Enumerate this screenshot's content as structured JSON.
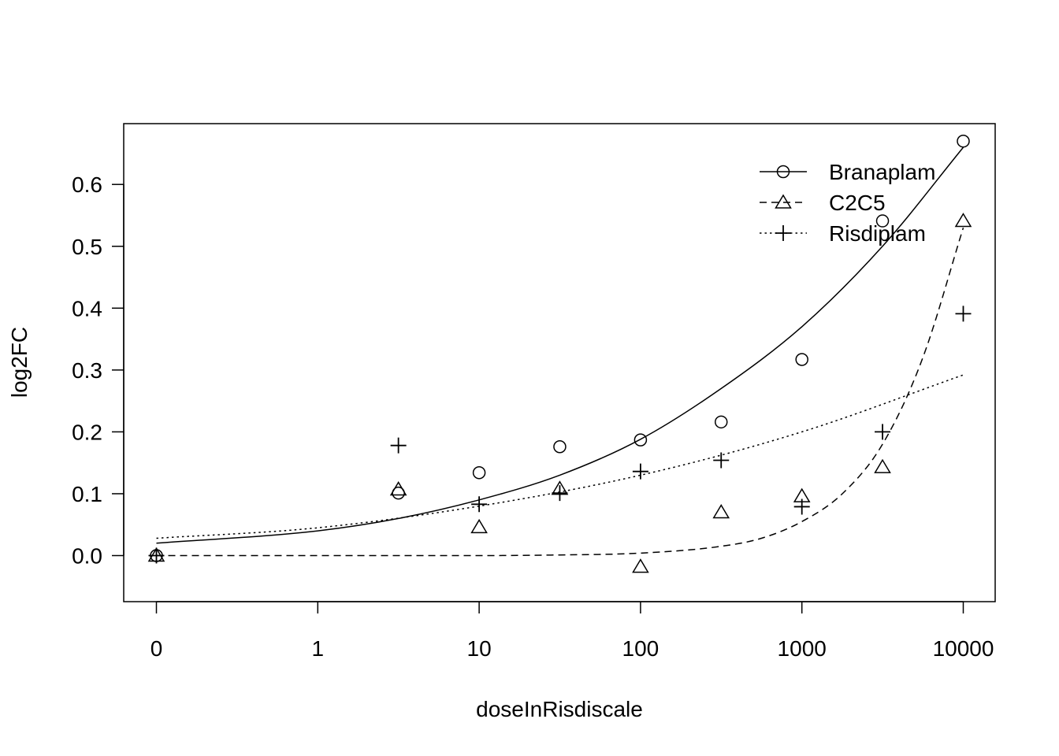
{
  "chart_data": {
    "type": "scatter",
    "title": "",
    "xlabel": "doseInRisdiscale",
    "ylabel": "log2FC",
    "x_scale": "log10 (0 placed one decade below 1)",
    "x_ticks": [
      "0",
      "1",
      "10",
      "100",
      "1000",
      "10000"
    ],
    "y_ticks": [
      "0.0",
      "0.1",
      "0.2",
      "0.3",
      "0.4",
      "0.5",
      "0.6"
    ],
    "ylim": [
      -0.075,
      0.7
    ],
    "grid": false,
    "legend_position": "top-right",
    "series": [
      {
        "name": "Branaplam",
        "marker": "circle",
        "line_style": "solid",
        "points": [
          {
            "x": 0,
            "y": 0.0
          },
          {
            "x": 3.16,
            "y": 0.101
          },
          {
            "x": 10,
            "y": 0.134
          },
          {
            "x": 31.6,
            "y": 0.176
          },
          {
            "x": 100,
            "y": 0.187
          },
          {
            "x": 316,
            "y": 0.216
          },
          {
            "x": 1000,
            "y": 0.317
          },
          {
            "x": 3160,
            "y": 0.541
          },
          {
            "x": 10000,
            "y": 0.67
          }
        ],
        "fit": [
          {
            "x": 0,
            "y": 0.02
          },
          {
            "x": 1,
            "y": 0.04
          },
          {
            "x": 3.16,
            "y": 0.06
          },
          {
            "x": 10,
            "y": 0.09
          },
          {
            "x": 31.6,
            "y": 0.13
          },
          {
            "x": 100,
            "y": 0.188
          },
          {
            "x": 316,
            "y": 0.27
          },
          {
            "x": 1000,
            "y": 0.37
          },
          {
            "x": 3160,
            "y": 0.5
          },
          {
            "x": 10000,
            "y": 0.66
          }
        ]
      },
      {
        "name": "C2C5",
        "marker": "triangle",
        "line_style": "dashed",
        "points": [
          {
            "x": 0,
            "y": 0.0
          },
          {
            "x": 3.16,
            "y": 0.107
          },
          {
            "x": 10,
            "y": 0.046
          },
          {
            "x": 31.6,
            "y": 0.108
          },
          {
            "x": 100,
            "y": -0.018
          },
          {
            "x": 316,
            "y": 0.07
          },
          {
            "x": 1000,
            "y": 0.096
          },
          {
            "x": 3160,
            "y": 0.143
          },
          {
            "x": 10000,
            "y": 0.541
          }
        ],
        "fit": [
          {
            "x": 0,
            "y": 0.0
          },
          {
            "x": 1,
            "y": 0.0
          },
          {
            "x": 10,
            "y": 0.0
          },
          {
            "x": 31.6,
            "y": 0.001
          },
          {
            "x": 100,
            "y": 0.004
          },
          {
            "x": 316,
            "y": 0.015
          },
          {
            "x": 562,
            "y": 0.028
          },
          {
            "x": 1000,
            "y": 0.055
          },
          {
            "x": 1780,
            "y": 0.1
          },
          {
            "x": 3160,
            "y": 0.18
          },
          {
            "x": 5620,
            "y": 0.32
          },
          {
            "x": 10000,
            "y": 0.53
          }
        ]
      },
      {
        "name": "Risdiplam",
        "marker": "plus",
        "line_style": "dotted",
        "points": [
          {
            "x": 0,
            "y": 0.0
          },
          {
            "x": 3.16,
            "y": 0.178
          },
          {
            "x": 10,
            "y": 0.083
          },
          {
            "x": 31.6,
            "y": 0.101
          },
          {
            "x": 100,
            "y": 0.136
          },
          {
            "x": 316,
            "y": 0.154
          },
          {
            "x": 1000,
            "y": 0.079
          },
          {
            "x": 3160,
            "y": 0.2
          },
          {
            "x": 10000,
            "y": 0.391
          }
        ],
        "fit": [
          {
            "x": 0,
            "y": 0.028
          },
          {
            "x": 1,
            "y": 0.045
          },
          {
            "x": 10,
            "y": 0.08
          },
          {
            "x": 100,
            "y": 0.13
          },
          {
            "x": 1000,
            "y": 0.2
          },
          {
            "x": 10000,
            "y": 0.292
          }
        ]
      }
    ]
  }
}
